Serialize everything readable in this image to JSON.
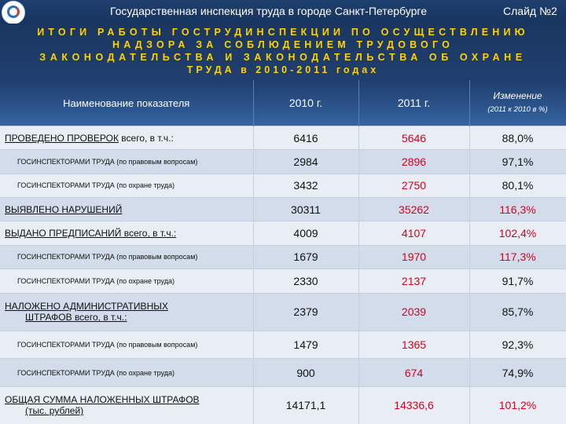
{
  "header": {
    "organization": "Государственная инспекция труда в городе Санкт-Петербурге",
    "slide_label": "Слайд №2"
  },
  "title": {
    "line1": "ИТОГИ РАБОТЫ ГОСТРУДИНСПЕКЦИИ ПО ОСУЩЕСТВЛЕНИЮ",
    "line2": "НАДЗОРА ЗА СОБЛЮДЕНИЕМ ТРУДОВОГО",
    "line3": "ЗАКОНОДАТЕЛЬСТВА И ЗАКОНОДАТЕЛЬСТВА ОБ ОХРАНЕ",
    "line4": "ТРУДА в 2010-2011 годах"
  },
  "table": {
    "headers": {
      "name": "Наименование показателя",
      "y2010": "2010 г.",
      "y2011": "2011 г.",
      "change": "Изменение",
      "change_sub": "(2011 к 2010 в %)"
    },
    "rows": [
      {
        "name_main": "ПРОВЕДЕНО ПРОВЕРОК",
        "name_tail": " всего, в т.ч.:",
        "v2010": "6416",
        "v2011": "5646",
        "change": "88,0%"
      },
      {
        "name_main": "ГОСИНСПЕКТОРАМИ ТРУДА (по правовым вопросам)",
        "v2010": "2984",
        "v2011": "2896",
        "change": "97,1%"
      },
      {
        "name_main": "ГОСИНСПЕКТОРАМИ ТРУДА (по охране труда)",
        "v2010": "3432",
        "v2011": "2750",
        "change": "80,1%"
      },
      {
        "name_main": "ВЫЯВЛЕНО НАРУШЕНИЙ",
        "v2010": "30311",
        "v2011": "35262",
        "change": "116,3%"
      },
      {
        "name_main": "ВЫДАНО ПРЕДПИСАНИЙ всего, в т.ч.:",
        "v2010": "4009",
        "v2011": "4107",
        "change": "102,4%"
      },
      {
        "name_main": "ГОСИНСПЕКТОРАМИ ТРУДА (по правовым вопросам)",
        "v2010": "1679",
        "v2011": "1970",
        "change": "117,3%"
      },
      {
        "name_main": "ГОСИНСПЕКТОРАМИ ТРУДА (по охране труда)",
        "v2010": "2330",
        "v2011": "2137",
        "change": "91,7%"
      },
      {
        "name_main": "НАЛОЖЕНО АДМИНИСТРАТИВНЫХ",
        "name_main2": "ШТРАФОВ",
        "name_tail": " всего, в т.ч.:",
        "v2010": "2379",
        "v2011": "2039",
        "change": "85,7%"
      },
      {
        "name_main": "ГОСИНСПЕКТОРАМИ ТРУДА (по правовым вопросам)",
        "v2010": "1479",
        "v2011": "1365",
        "change": "92,3%"
      },
      {
        "name_main": "ГОСИНСПЕКТОРАМИ ТРУДА (по охране труда)",
        "v2010": "900",
        "v2011": "674",
        "change": "74,9%"
      },
      {
        "name_main": "ОБЩАЯ СУММА НАЛОЖЕННЫХ ШТРАФОВ",
        "name_main2": "(тыс. рублей)",
        "v2010": "14171,1",
        "v2011": "14336,6",
        "change": "101,2%"
      }
    ]
  },
  "colors": {
    "header_bg": "#1f3f6e",
    "title_text": "#ffd200",
    "value_2011": "#d8001e",
    "row_even": "#e9eef5",
    "row_odd": "#d2dcea"
  },
  "icons": {
    "logo": "labor-inspection-logo-icon"
  }
}
